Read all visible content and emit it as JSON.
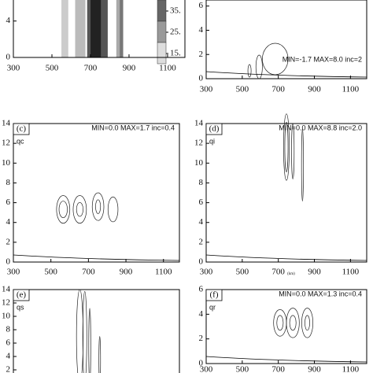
{
  "chart_data": [
    {
      "type": "contour",
      "xlim": [
        300,
        1190
      ],
      "xticks": [
        300,
        500,
        700,
        900,
        1100
      ],
      "ylim": [
        0,
        7
      ],
      "yticks": [
        0,
        4
      ],
      "colorbar_ticks": [
        {
          "value": 35,
          "label": "35."
        },
        {
          "value": 25,
          "label": "25."
        },
        {
          "value": 15,
          "label": "15."
        }
      ]
    },
    {
      "type": "contour",
      "annotation": "MIN=-1.7 MAX=8.0 inc=2",
      "xlim": [
        300,
        1190
      ],
      "xticks": [
        300,
        500,
        700,
        900,
        1100
      ],
      "ylim": [
        0,
        6.5
      ],
      "yticks": [
        0,
        2,
        4,
        6
      ]
    },
    {
      "type": "contour",
      "panel": "(c)",
      "variable": "qc",
      "annotation": "MIN=0.0 MAX=1.7 inc=0.4",
      "xlim": [
        300,
        1185
      ],
      "xticks": [
        300,
        500,
        700,
        900,
        1100
      ],
      "ylim": [
        0,
        14
      ],
      "yticks": [
        0,
        2,
        4,
        6,
        8,
        10,
        12,
        14
      ]
    },
    {
      "type": "contour",
      "panel": "(d)",
      "variable": "qi",
      "annotation": "MIN=0.0 MAX=8.8 inc=2.0",
      "xlabel": "(km)",
      "xlim": [
        300,
        1190
      ],
      "xticks": [
        300,
        500,
        700,
        900,
        1100
      ],
      "ylim": [
        0,
        14
      ],
      "yticks": [
        0,
        2,
        4,
        6,
        8,
        10,
        12,
        14
      ]
    },
    {
      "type": "contour",
      "panel": "(e)",
      "variable": "qs",
      "xlim": [
        300,
        1185
      ],
      "xticks": [],
      "ylim": [
        0,
        14
      ],
      "yticks": [
        2,
        4,
        6,
        8,
        10,
        12,
        14
      ]
    },
    {
      "type": "contour",
      "panel": "(f)",
      "variable": "qr",
      "annotation": "MIN=0.0 MAX=1.3 inc=0.4",
      "xlim": [
        300,
        1190
      ],
      "xticks": [
        300,
        500,
        700,
        900,
        1100
      ],
      "ylim": [
        0,
        6
      ],
      "yticks": [
        0,
        2,
        4,
        6
      ]
    }
  ]
}
